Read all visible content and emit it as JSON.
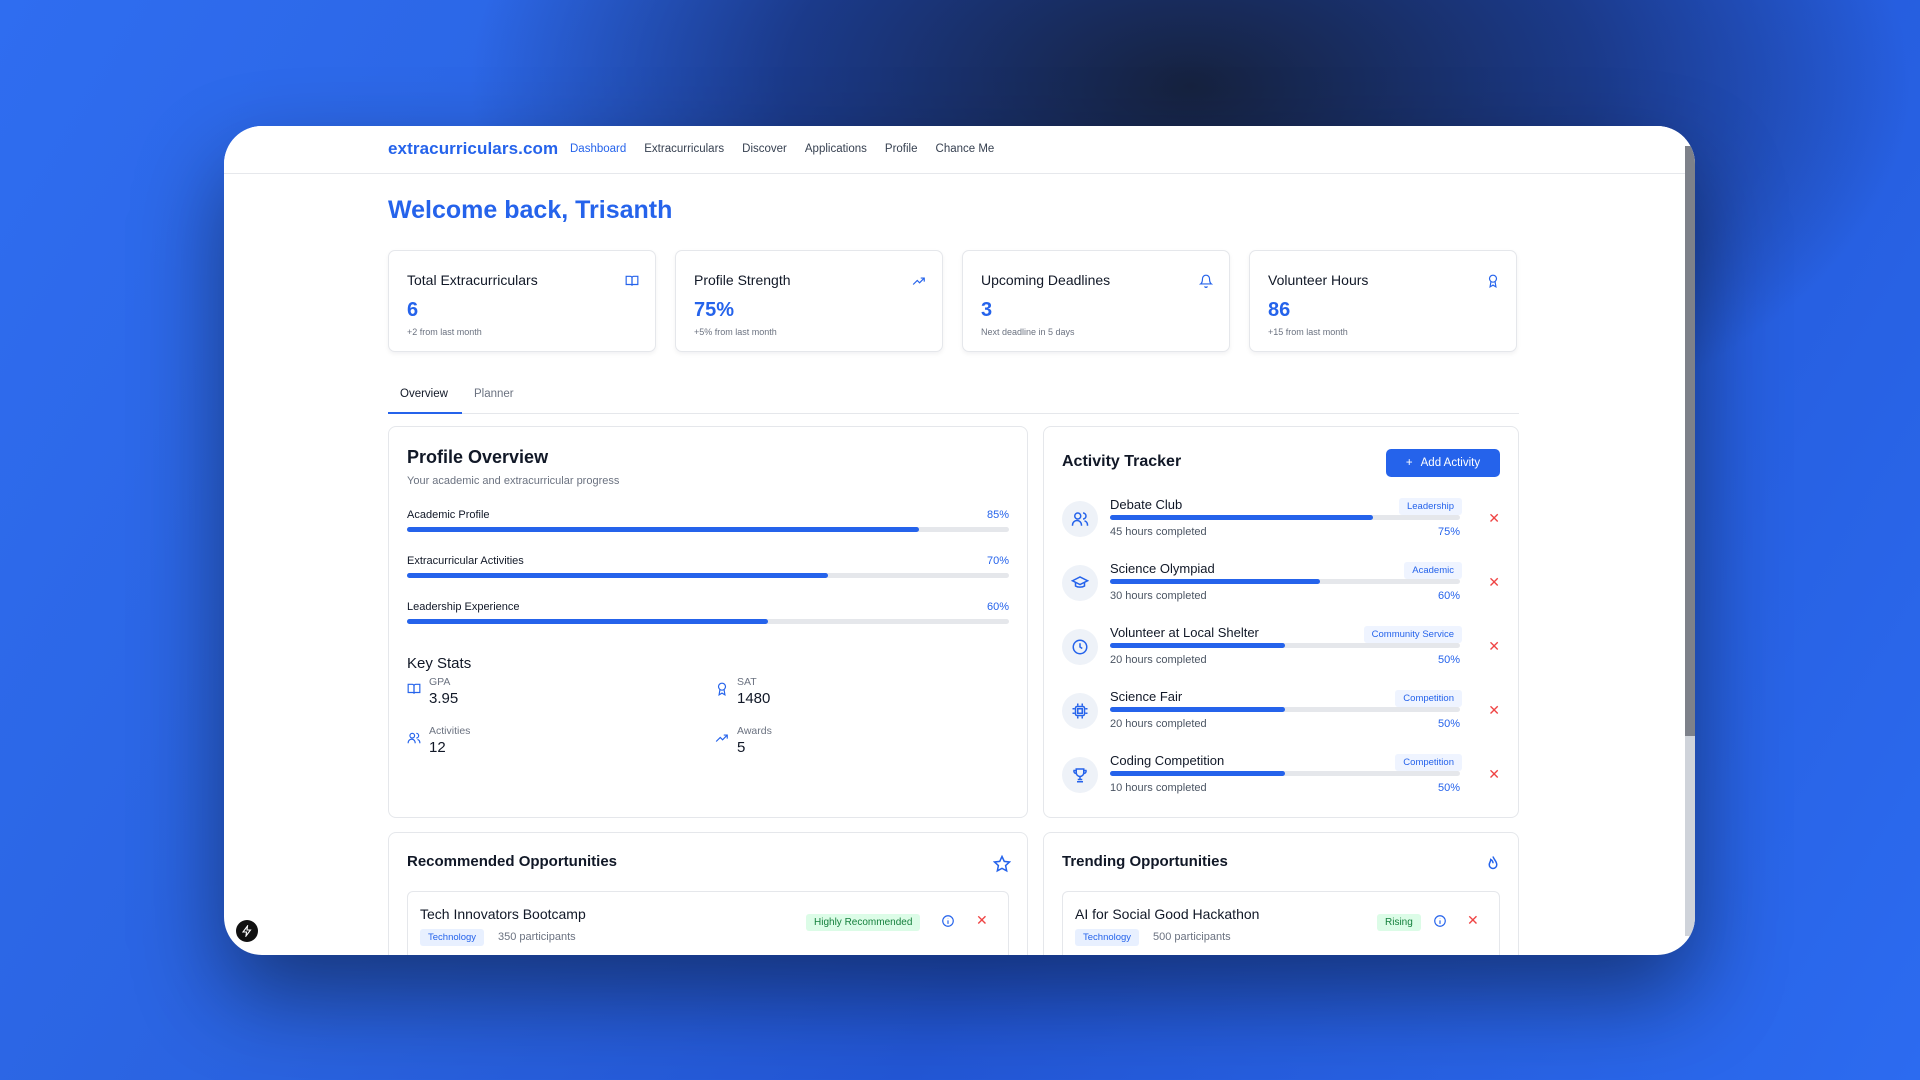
{
  "nav": {
    "brand": "extracurriculars.com",
    "links": [
      "Dashboard",
      "Extracurriculars",
      "Discover",
      "Applications",
      "Profile",
      "Chance Me"
    ],
    "active": "Dashboard"
  },
  "welcome": "Welcome back, Trisanth",
  "stats": [
    {
      "label": "Total Extracurriculars",
      "value": "6",
      "sub": "+2 from last month",
      "icon": "book-icon"
    },
    {
      "label": "Profile Strength",
      "value": "75%",
      "sub": "+5% from last month",
      "icon": "trending-up-icon"
    },
    {
      "label": "Upcoming Deadlines",
      "value": "3",
      "sub": "Next deadline in 5 days",
      "icon": "bell-icon"
    },
    {
      "label": "Volunteer Hours",
      "value": "86",
      "sub": "+15 from last month",
      "icon": "award-icon"
    }
  ],
  "tabs": [
    "Overview",
    "Planner"
  ],
  "profile": {
    "title": "Profile Overview",
    "subtitle": "Your academic and extracurricular progress",
    "bars": [
      {
        "label": "Academic Profile",
        "pct_text": "85%",
        "value": 0.85
      },
      {
        "label": "Extracurricular Activities",
        "pct_text": "70%",
        "value": 0.7
      },
      {
        "label": "Leadership Experience",
        "pct_text": "60%",
        "value": 0.6
      }
    ],
    "key_stats_title": "Key Stats",
    "key_stats": [
      {
        "label": "GPA",
        "value": "3.95",
        "icon": "book-icon"
      },
      {
        "label": "SAT",
        "value": "1480",
        "icon": "award-icon"
      },
      {
        "label": "Activities",
        "value": "12",
        "icon": "users-icon"
      },
      {
        "label": "Awards",
        "value": "5",
        "icon": "trending-up-icon"
      }
    ]
  },
  "tracker": {
    "title": "Activity Tracker",
    "add_label": "Add Activity",
    "activities": [
      {
        "name": "Debate Club",
        "tag": "Leadership",
        "hours": "45 hours completed",
        "pct_text": "75%",
        "value": 0.75,
        "icon": "users-icon"
      },
      {
        "name": "Science Olympiad",
        "tag": "Academic",
        "hours": "30 hours completed",
        "pct_text": "60%",
        "value": 0.6,
        "icon": "graduation-cap-icon"
      },
      {
        "name": "Volunteer at Local Shelter",
        "tag": "Community Service",
        "hours": "20 hours completed",
        "pct_text": "50%",
        "value": 0.5,
        "icon": "clock-icon"
      },
      {
        "name": "Science Fair",
        "tag": "Competition",
        "hours": "20 hours completed",
        "pct_text": "50%",
        "value": 0.5,
        "icon": "cpu-icon"
      },
      {
        "name": "Coding Competition",
        "tag": "Competition",
        "hours": "10 hours completed",
        "pct_text": "50%",
        "value": 0.5,
        "icon": "trophy-icon"
      }
    ]
  },
  "recommended": {
    "title": "Recommended Opportunities",
    "item": {
      "title": "Tech Innovators Bootcamp",
      "tag": "Technology",
      "participants": "350 participants",
      "badge": "Highly Recommended"
    }
  },
  "trending": {
    "title": "Trending Opportunities",
    "item": {
      "title": "AI for Social Good Hackathon",
      "tag": "Technology",
      "participants": "500 participants",
      "badge": "Rising"
    }
  },
  "colors": {
    "accent": "#2563eb",
    "danger": "#ef4444",
    "success": "#15803d"
  }
}
